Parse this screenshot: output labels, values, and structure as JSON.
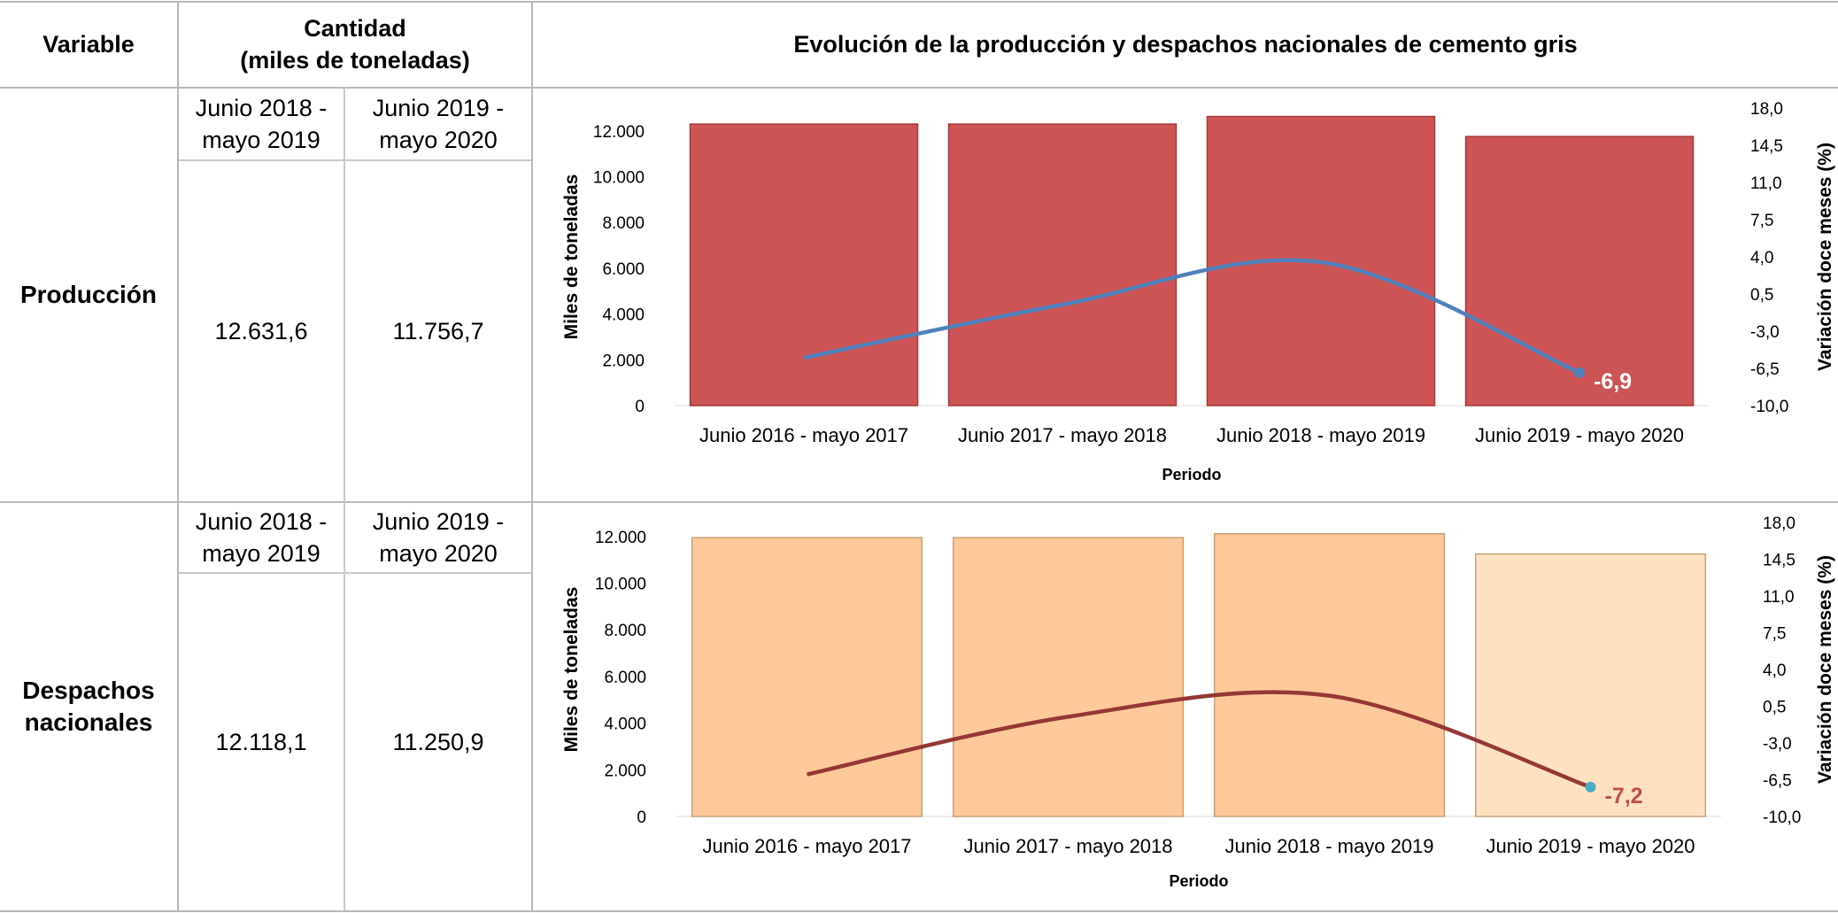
{
  "table": {
    "header_variable": "Variable",
    "header_quantity_line1": "Cantidad",
    "header_quantity_line2": "(miles de toneladas)",
    "header_chart": "Evolución de la producción y despachos nacionales de cemento gris",
    "period_a_line1": "Junio 2018 -",
    "period_a_line2": "mayo 2019",
    "period_b_line1": "Junio 2019 -",
    "period_b_line2": "mayo 2020",
    "rows": [
      {
        "label_line1": "Producción",
        "label_line2": "",
        "value_a": "12.631,6",
        "value_b": "11.756,7"
      },
      {
        "label_line1": "Despachos",
        "label_line2": "nacionales",
        "value_a": "12.118,1",
        "value_b": "11.250,9"
      }
    ]
  },
  "colors": {
    "grid": "#b8b8b8",
    "prod_bar": "#cd5454",
    "prod_bar_edge": "#a53a3a",
    "prod_line": "#4f81bd",
    "prod_label": "#ffffff",
    "desp_bar": "#fdc99a",
    "desp_bar_last": "#fde1c0",
    "desp_bar_edge": "#c9a07a",
    "desp_line": "#953735",
    "desp_marker": "#4bacc6",
    "desp_label": "#c0504d"
  },
  "chart_data": [
    {
      "type": "bar",
      "name": "Producción",
      "categories": [
        "Junio 2016 - mayo 2017",
        "Junio 2017 - mayo 2018",
        "Junio 2018 - mayo 2019",
        "Junio 2019 - mayo 2020"
      ],
      "series": [
        {
          "name": "Miles de toneladas",
          "type": "bar",
          "axis": "left",
          "values": [
            12300,
            12300,
            12631.6,
            11756.7
          ]
        },
        {
          "name": "Variación doce meses (%)",
          "type": "line",
          "axis": "right",
          "values": [
            -5.5,
            -0.5,
            3.5,
            -6.9
          ]
        }
      ],
      "last_label": "-6,9",
      "xlabel": "Periodo",
      "ylabel": "Miles de toneladas",
      "y2label": "Variación doce meses (%)",
      "ylim": [
        0,
        13000
      ],
      "y2lim": [
        -10,
        18
      ],
      "yticks": [
        0,
        2000,
        4000,
        6000,
        8000,
        10000,
        12000
      ],
      "ytick_labels": [
        "0",
        "2.000",
        "4.000",
        "6.000",
        "8.000",
        "10.000",
        "12.000"
      ],
      "y2ticks": [
        -10,
        -6.5,
        -3,
        0.5,
        4,
        7.5,
        11,
        14.5,
        18
      ],
      "y2tick_labels": [
        "-10,0",
        "-6,5",
        "-3,0",
        "0,5",
        "4,0",
        "7,5",
        "11,0",
        "14,5",
        "18,0"
      ]
    },
    {
      "type": "bar",
      "name": "Despachos nacionales",
      "categories": [
        "Junio 2016 - mayo 2017",
        "Junio 2017 - mayo 2018",
        "Junio 2018 - mayo 2019",
        "Junio 2019 - mayo 2020"
      ],
      "series": [
        {
          "name": "Miles de toneladas",
          "type": "bar",
          "axis": "left",
          "values": [
            11950,
            11950,
            12118.1,
            11250.9
          ]
        },
        {
          "name": "Variación doce meses (%)",
          "type": "line",
          "axis": "right",
          "values": [
            -6.0,
            -0.5,
            1.5,
            -7.2
          ]
        }
      ],
      "last_label": "-7,2",
      "xlabel": "Periodo",
      "ylabel": "Miles de toneladas",
      "y2label": "Variación doce meses (%)",
      "ylim": [
        0,
        12600
      ],
      "y2lim": [
        -10,
        18
      ],
      "yticks": [
        0,
        2000,
        4000,
        6000,
        8000,
        10000,
        12000
      ],
      "ytick_labels": [
        "0",
        "2.000",
        "4.000",
        "6.000",
        "8.000",
        "10.000",
        "12.000"
      ],
      "y2ticks": [
        -10,
        -6.5,
        -3,
        0.5,
        4,
        7.5,
        11,
        14.5,
        18
      ],
      "y2tick_labels": [
        "-10,0",
        "-6,5",
        "-3,0",
        "0,5",
        "4,0",
        "7,5",
        "11,0",
        "14,5",
        "18,0"
      ]
    }
  ]
}
